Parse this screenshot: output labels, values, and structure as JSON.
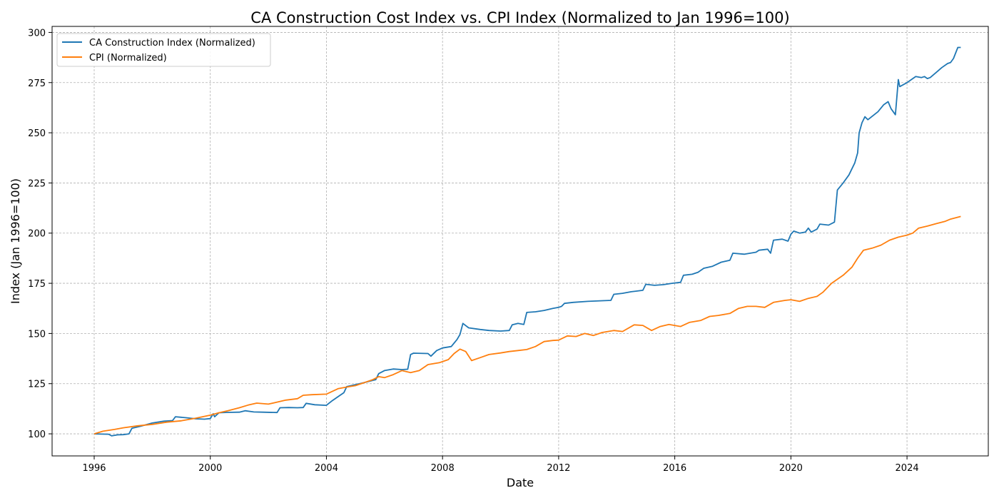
{
  "chart_data": {
    "type": "line",
    "title": "CA Construction Cost Index vs. CPI Index (Normalized to Jan 1996=100)",
    "xlabel": "Date",
    "ylabel": "Index (Jan 1996=100)",
    "xlim": [
      1994.55,
      2026.8
    ],
    "ylim": [
      89,
      303
    ],
    "xticks": [
      1996,
      2000,
      2004,
      2008,
      2012,
      2016,
      2020,
      2024
    ],
    "yticks": [
      100,
      125,
      150,
      175,
      200,
      225,
      250,
      275,
      300
    ],
    "grid": true,
    "legend_position": "top-left",
    "colors": {
      "ca": "#1f77b4",
      "cpi": "#ff7f0e"
    },
    "series": [
      {
        "name": "CA Construction Index (Normalized)",
        "color": "#1f77b4",
        "points": [
          [
            1996.0,
            100
          ],
          [
            1996.5,
            99.8
          ],
          [
            1996.6,
            99
          ],
          [
            1996.8,
            99.5
          ],
          [
            1997.0,
            99.6
          ],
          [
            1997.2,
            100
          ],
          [
            1997.3,
            102.8
          ],
          [
            1997.6,
            103.8
          ],
          [
            1998.0,
            105.4
          ],
          [
            1998.4,
            106.3
          ],
          [
            1998.7,
            106.6
          ],
          [
            1998.8,
            108.5
          ],
          [
            1999.2,
            108
          ],
          [
            1999.5,
            107.5
          ],
          [
            1999.8,
            107.3
          ],
          [
            2000.0,
            107.6
          ],
          [
            2000.1,
            110
          ],
          [
            2000.15,
            108.5
          ],
          [
            2000.3,
            110.5
          ],
          [
            2000.6,
            110.7
          ],
          [
            2001.0,
            110.8
          ],
          [
            2001.2,
            111.5
          ],
          [
            2001.5,
            110.9
          ],
          [
            2001.8,
            110.8
          ],
          [
            2002.3,
            110.6
          ],
          [
            2002.4,
            113
          ],
          [
            2002.7,
            113.1
          ],
          [
            2003.0,
            113
          ],
          [
            2003.2,
            113.1
          ],
          [
            2003.3,
            115.2
          ],
          [
            2003.6,
            114.5
          ],
          [
            2004.0,
            114.2
          ],
          [
            2004.2,
            116.5
          ],
          [
            2004.4,
            118.5
          ],
          [
            2004.6,
            120.5
          ],
          [
            2004.7,
            123.5
          ],
          [
            2005.0,
            124.5
          ],
          [
            2005.3,
            125.5
          ],
          [
            2005.5,
            126.3
          ],
          [
            2005.7,
            127
          ],
          [
            2005.8,
            130
          ],
          [
            2006.0,
            131.5
          ],
          [
            2006.3,
            132.3
          ],
          [
            2006.6,
            132
          ],
          [
            2006.8,
            132.2
          ],
          [
            2006.9,
            139.5
          ],
          [
            2007.0,
            140.2
          ],
          [
            2007.5,
            140
          ],
          [
            2007.6,
            138.7
          ],
          [
            2007.8,
            141.5
          ],
          [
            2008.0,
            142.8
          ],
          [
            2008.3,
            143.5
          ],
          [
            2008.5,
            147
          ],
          [
            2008.6,
            149.5
          ],
          [
            2008.7,
            155
          ],
          [
            2008.9,
            152.8
          ],
          [
            2009.3,
            152
          ],
          [
            2009.6,
            151.5
          ],
          [
            2010.0,
            151.2
          ],
          [
            2010.3,
            151.5
          ],
          [
            2010.4,
            154.3
          ],
          [
            2010.6,
            155
          ],
          [
            2010.8,
            154.5
          ],
          [
            2010.9,
            160.5
          ],
          [
            2011.2,
            160.8
          ],
          [
            2011.5,
            161.5
          ],
          [
            2011.8,
            162.5
          ],
          [
            2012.0,
            163
          ],
          [
            2012.1,
            163.5
          ],
          [
            2012.2,
            165
          ],
          [
            2012.5,
            165.5
          ],
          [
            2013.0,
            166
          ],
          [
            2013.5,
            166.3
          ],
          [
            2013.8,
            166.5
          ],
          [
            2013.9,
            169.5
          ],
          [
            2014.2,
            170
          ],
          [
            2014.5,
            170.8
          ],
          [
            2014.9,
            171.5
          ],
          [
            2015.0,
            174.5
          ],
          [
            2015.3,
            174
          ],
          [
            2015.6,
            174.3
          ],
          [
            2015.9,
            175
          ],
          [
            2016.2,
            175.5
          ],
          [
            2016.3,
            179
          ],
          [
            2016.6,
            179.5
          ],
          [
            2016.8,
            180.5
          ],
          [
            2017.0,
            182.5
          ],
          [
            2017.3,
            183.5
          ],
          [
            2017.6,
            185.5
          ],
          [
            2017.9,
            186.5
          ],
          [
            2018.0,
            190
          ],
          [
            2018.4,
            189.5
          ],
          [
            2018.8,
            190.5
          ],
          [
            2018.9,
            191.5
          ],
          [
            2019.2,
            192
          ],
          [
            2019.3,
            190
          ],
          [
            2019.4,
            196.5
          ],
          [
            2019.7,
            197
          ],
          [
            2019.9,
            196
          ],
          [
            2020.0,
            199.5
          ],
          [
            2020.1,
            201
          ],
          [
            2020.3,
            200
          ],
          [
            2020.5,
            200.5
          ],
          [
            2020.6,
            202.5
          ],
          [
            2020.7,
            200.5
          ],
          [
            2020.9,
            202
          ],
          [
            2021.0,
            204.5
          ],
          [
            2021.3,
            204
          ],
          [
            2021.5,
            205.5
          ],
          [
            2021.6,
            221.5
          ],
          [
            2021.8,
            225
          ],
          [
            2022.0,
            229
          ],
          [
            2022.2,
            235
          ],
          [
            2022.3,
            240
          ],
          [
            2022.35,
            250
          ],
          [
            2022.45,
            255
          ],
          [
            2022.55,
            258
          ],
          [
            2022.65,
            256.5
          ],
          [
            2023.0,
            260.5
          ],
          [
            2023.2,
            264
          ],
          [
            2023.35,
            265.5
          ],
          [
            2023.45,
            262
          ],
          [
            2023.6,
            259
          ],
          [
            2023.7,
            276.5
          ],
          [
            2023.75,
            273
          ],
          [
            2024.0,
            275
          ],
          [
            2024.2,
            277
          ],
          [
            2024.3,
            278
          ],
          [
            2024.5,
            277.5
          ],
          [
            2024.6,
            278
          ],
          [
            2024.7,
            277
          ],
          [
            2024.8,
            277.5
          ],
          [
            2025.0,
            280
          ],
          [
            2025.2,
            282.5
          ],
          [
            2025.4,
            284.5
          ],
          [
            2025.5,
            285
          ],
          [
            2025.6,
            287
          ],
          [
            2025.75,
            292.5
          ],
          [
            2025.85,
            292.5
          ]
        ]
      },
      {
        "name": "CPI (Normalized)",
        "color": "#ff7f0e",
        "points": [
          [
            1996.0,
            100
          ],
          [
            1996.3,
            101.3
          ],
          [
            1996.7,
            102.2
          ],
          [
            1997.0,
            103
          ],
          [
            1997.5,
            104
          ],
          [
            1998.0,
            104.7
          ],
          [
            1998.5,
            105.8
          ],
          [
            1999.0,
            106.5
          ],
          [
            1999.5,
            107.8
          ],
          [
            2000.0,
            109.3
          ],
          [
            2000.3,
            110.5
          ],
          [
            2000.6,
            111.5
          ],
          [
            2001.0,
            113
          ],
          [
            2001.3,
            114.3
          ],
          [
            2001.6,
            115.3
          ],
          [
            2002.0,
            114.8
          ],
          [
            2002.3,
            115.8
          ],
          [
            2002.6,
            116.8
          ],
          [
            2003.0,
            117.5
          ],
          [
            2003.2,
            119.2
          ],
          [
            2003.5,
            119.5
          ],
          [
            2004.0,
            119.8
          ],
          [
            2004.4,
            122.5
          ],
          [
            2004.7,
            123.3
          ],
          [
            2005.0,
            124
          ],
          [
            2005.3,
            125.5
          ],
          [
            2005.6,
            127
          ],
          [
            2005.8,
            128.5
          ],
          [
            2006.0,
            128
          ],
          [
            2006.3,
            129.5
          ],
          [
            2006.6,
            131.5
          ],
          [
            2006.9,
            130.5
          ],
          [
            2007.2,
            131.5
          ],
          [
            2007.5,
            134.5
          ],
          [
            2007.9,
            135.5
          ],
          [
            2008.2,
            137
          ],
          [
            2008.4,
            140
          ],
          [
            2008.6,
            142.2
          ],
          [
            2008.8,
            141
          ],
          [
            2009.0,
            136.5
          ],
          [
            2009.3,
            138
          ],
          [
            2009.6,
            139.5
          ],
          [
            2010.0,
            140.3
          ],
          [
            2010.3,
            141
          ],
          [
            2010.6,
            141.5
          ],
          [
            2010.9,
            142
          ],
          [
            2011.2,
            143.5
          ],
          [
            2011.5,
            146
          ],
          [
            2011.8,
            146.5
          ],
          [
            2012.0,
            146.7
          ],
          [
            2012.3,
            148.8
          ],
          [
            2012.6,
            148.5
          ],
          [
            2012.9,
            150
          ],
          [
            2013.2,
            149
          ],
          [
            2013.5,
            150.5
          ],
          [
            2013.9,
            151.5
          ],
          [
            2014.2,
            151
          ],
          [
            2014.6,
            154.3
          ],
          [
            2014.9,
            154
          ],
          [
            2015.2,
            151.5
          ],
          [
            2015.5,
            153.5
          ],
          [
            2015.8,
            154.5
          ],
          [
            2016.2,
            153.5
          ],
          [
            2016.5,
            155.5
          ],
          [
            2016.9,
            156.5
          ],
          [
            2017.2,
            158.5
          ],
          [
            2017.5,
            159
          ],
          [
            2017.9,
            160
          ],
          [
            2018.2,
            162.5
          ],
          [
            2018.5,
            163.5
          ],
          [
            2018.8,
            163.5
          ],
          [
            2019.1,
            163
          ],
          [
            2019.4,
            165.5
          ],
          [
            2019.8,
            166.5
          ],
          [
            2020.0,
            166.8
          ],
          [
            2020.3,
            166
          ],
          [
            2020.6,
            167.5
          ],
          [
            2020.9,
            168.5
          ],
          [
            2021.1,
            170.5
          ],
          [
            2021.4,
            175
          ],
          [
            2021.8,
            179
          ],
          [
            2022.1,
            183
          ],
          [
            2022.3,
            187.5
          ],
          [
            2022.5,
            191.5
          ],
          [
            2022.8,
            192.5
          ],
          [
            2023.1,
            194
          ],
          [
            2023.4,
            196.5
          ],
          [
            2023.7,
            198
          ],
          [
            2024.0,
            199
          ],
          [
            2024.2,
            200
          ],
          [
            2024.4,
            202.5
          ],
          [
            2024.7,
            203.5
          ],
          [
            2025.0,
            204.7
          ],
          [
            2025.3,
            205.8
          ],
          [
            2025.5,
            207
          ],
          [
            2025.85,
            208.3
          ]
        ]
      }
    ]
  }
}
